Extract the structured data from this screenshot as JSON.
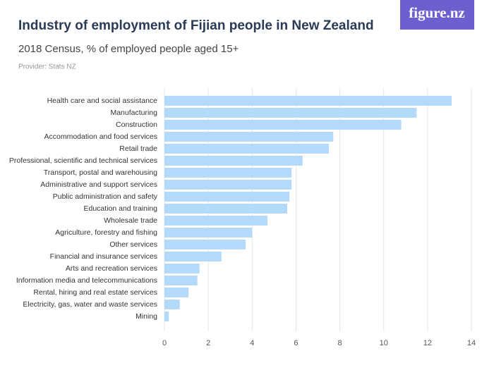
{
  "brand": "figure.nz",
  "chart_data": {
    "type": "bar",
    "orientation": "horizontal",
    "title": "Industry of employment of Fijian people in New Zealand",
    "subtitle": "2018 Census, % of employed people aged 15+",
    "source": "Provider: Stats NZ",
    "categories": [
      "Health care and social assistance",
      "Manufacturing",
      "Construction",
      "Accommodation and food services",
      "Retail trade",
      "Professional, scientific and technical services",
      "Transport, postal and warehousing",
      "Administrative and support services",
      "Public administration and safety",
      "Education and training",
      "Wholesale trade",
      "Agriculture, forestry and fishing",
      "Other services",
      "Financial and insurance services",
      "Arts and recreation services",
      "Information media and telecommunications",
      "Rental, hiring and real estate services",
      "Electricity, gas, water and waste services",
      "Mining"
    ],
    "values": [
      13.1,
      11.5,
      10.8,
      7.7,
      7.5,
      6.3,
      5.8,
      5.8,
      5.7,
      5.6,
      4.7,
      4.0,
      3.7,
      2.6,
      1.6,
      1.5,
      1.1,
      0.7,
      0.2
    ],
    "color": "#b3d9fb",
    "xlim": [
      0,
      14
    ],
    "xticks": [
      0,
      2,
      4,
      6,
      8,
      10,
      12,
      14
    ],
    "grid": true
  }
}
